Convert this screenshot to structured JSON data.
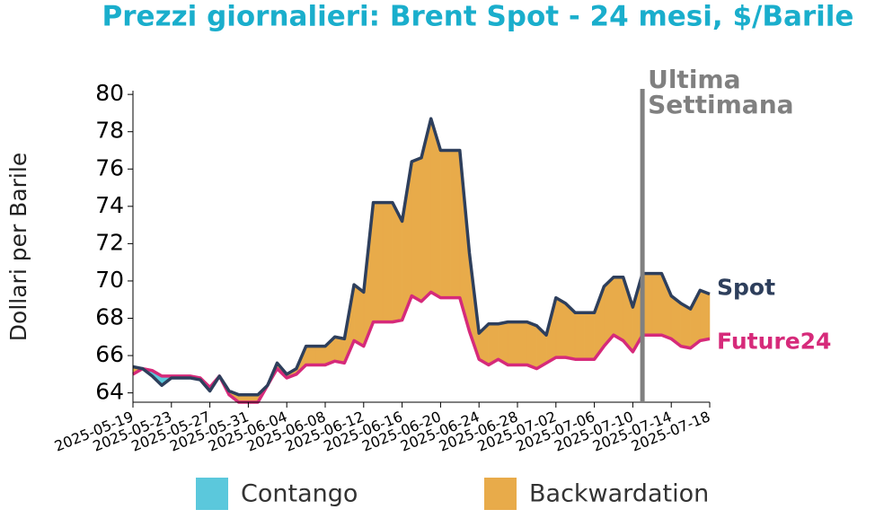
{
  "chart_data": {
    "type": "line",
    "title": "Prezzi giornalieri: Brent Spot - 24 mesi, $/Barile",
    "y_label": "Dollari per Barile",
    "x": [
      "2025-05-19",
      "2025-05-20",
      "2025-05-21",
      "2025-05-22",
      "2025-05-23",
      "2025-05-24",
      "2025-05-25",
      "2025-05-26",
      "2025-05-27",
      "2025-05-28",
      "2025-05-29",
      "2025-05-30",
      "2025-05-31",
      "2025-06-01",
      "2025-06-02",
      "2025-06-03",
      "2025-06-04",
      "2025-06-05",
      "2025-06-06",
      "2025-06-07",
      "2025-06-08",
      "2025-06-09",
      "2025-06-10",
      "2025-06-11",
      "2025-06-12",
      "2025-06-13",
      "2025-06-14",
      "2025-06-15",
      "2025-06-16",
      "2025-06-17",
      "2025-06-18",
      "2025-06-19",
      "2025-06-20",
      "2025-06-21",
      "2025-06-22",
      "2025-06-23",
      "2025-06-24",
      "2025-06-25",
      "2025-06-26",
      "2025-06-27",
      "2025-06-28",
      "2025-06-29",
      "2025-06-30",
      "2025-07-01",
      "2025-07-02",
      "2025-07-03",
      "2025-07-04",
      "2025-07-05",
      "2025-07-06",
      "2025-07-07",
      "2025-07-08",
      "2025-07-09",
      "2025-07-10",
      "2025-07-11",
      "2025-07-12",
      "2025-07-13",
      "2025-07-14",
      "2025-07-15",
      "2025-07-16",
      "2025-07-17",
      "2025-07-18"
    ],
    "series": [
      {
        "name": "Spot",
        "color": "#2e3f5c",
        "values": [
          65.4,
          65.3,
          64.9,
          64.4,
          64.8,
          64.8,
          64.8,
          64.7,
          64.1,
          64.9,
          64.1,
          63.9,
          63.9,
          63.9,
          64.4,
          65.6,
          65.0,
          65.3,
          66.5,
          66.5,
          66.5,
          67.0,
          66.9,
          69.8,
          69.4,
          74.2,
          74.2,
          74.2,
          73.2,
          76.4,
          76.6,
          78.7,
          77.0,
          77.0,
          77.0,
          71.5,
          67.2,
          67.7,
          67.7,
          67.8,
          67.8,
          67.8,
          67.6,
          67.1,
          69.1,
          68.8,
          68.3,
          68.3,
          68.3,
          69.7,
          70.2,
          70.2,
          68.6,
          70.4,
          70.4,
          70.4,
          69.2,
          68.8,
          68.5,
          69.5,
          69.3
        ]
      },
      {
        "name": "Future24",
        "color": "#d62a7a",
        "values": [
          65.0,
          65.3,
          65.2,
          64.9,
          64.9,
          64.9,
          64.9,
          64.8,
          64.3,
          64.9,
          63.9,
          63.5,
          63.5,
          63.5,
          64.4,
          65.3,
          64.8,
          65.0,
          65.5,
          65.5,
          65.5,
          65.7,
          65.6,
          66.8,
          66.5,
          67.8,
          67.8,
          67.8,
          67.9,
          69.2,
          68.9,
          69.4,
          69.1,
          69.1,
          69.1,
          67.3,
          65.8,
          65.5,
          65.8,
          65.5,
          65.5,
          65.5,
          65.3,
          65.6,
          65.9,
          65.9,
          65.8,
          65.8,
          65.8,
          66.5,
          67.1,
          66.8,
          66.2,
          67.1,
          67.1,
          67.1,
          66.9,
          66.5,
          66.4,
          66.8,
          66.9
        ]
      }
    ],
    "fill_legend": [
      {
        "name": "Contango",
        "color": "#5bc8dc"
      },
      {
        "name": "Backwardation",
        "color": "#e8ab4a"
      }
    ],
    "xlim": [
      "2025-05-19",
      "2025-07-18"
    ],
    "xticks": [
      "2025-05-19",
      "2025-05-23",
      "2025-05-27",
      "2025-05-31",
      "2025-06-04",
      "2025-06-08",
      "2025-06-12",
      "2025-06-16",
      "2025-06-20",
      "2025-06-24",
      "2025-06-28",
      "2025-07-02",
      "2025-07-06",
      "2025-07-10",
      "2025-07-14",
      "2025-07-18"
    ],
    "ylim": [
      63.5,
      80.2
    ],
    "yticks": [
      64,
      66,
      68,
      70,
      72,
      74,
      76,
      78,
      80
    ],
    "vline": {
      "x": "2025-07-11",
      "color": "#808080",
      "label": [
        "Ultima",
        "Settimana"
      ]
    }
  }
}
